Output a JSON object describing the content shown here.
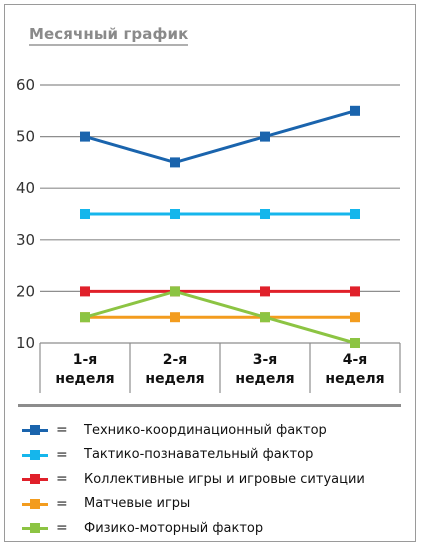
{
  "chart_data": {
    "type": "line",
    "title": "Месячный график",
    "categories": [
      [
        "1-я",
        "неделя"
      ],
      [
        "2-я",
        "неделя"
      ],
      [
        "3-я",
        "неделя"
      ],
      [
        "4-я",
        "неделя"
      ]
    ],
    "ylim": [
      10,
      60
    ],
    "yticks": [
      10,
      20,
      30,
      40,
      50,
      60
    ],
    "grid": true,
    "legend_position": "bottom",
    "series": [
      {
        "name": "Технико-координационный фактор",
        "color": "#1a64ad",
        "values": [
          50,
          45,
          50,
          55
        ]
      },
      {
        "name": "Тактико-познавательный фактор",
        "color": "#15b6ec",
        "values": [
          35,
          35,
          35,
          35
        ]
      },
      {
        "name": "Коллективные игры и игровые ситуации",
        "color": "#e0202a",
        "values": [
          20,
          20,
          20,
          20
        ]
      },
      {
        "name": "Матчевые игры",
        "color": "#f39c1e",
        "values": [
          15,
          15,
          15,
          15
        ]
      },
      {
        "name": "Физико-моторный фактор",
        "color": "#8cc443",
        "values": [
          15,
          20,
          15,
          10
        ]
      }
    ]
  },
  "legend": {
    "equals_sign": "="
  }
}
